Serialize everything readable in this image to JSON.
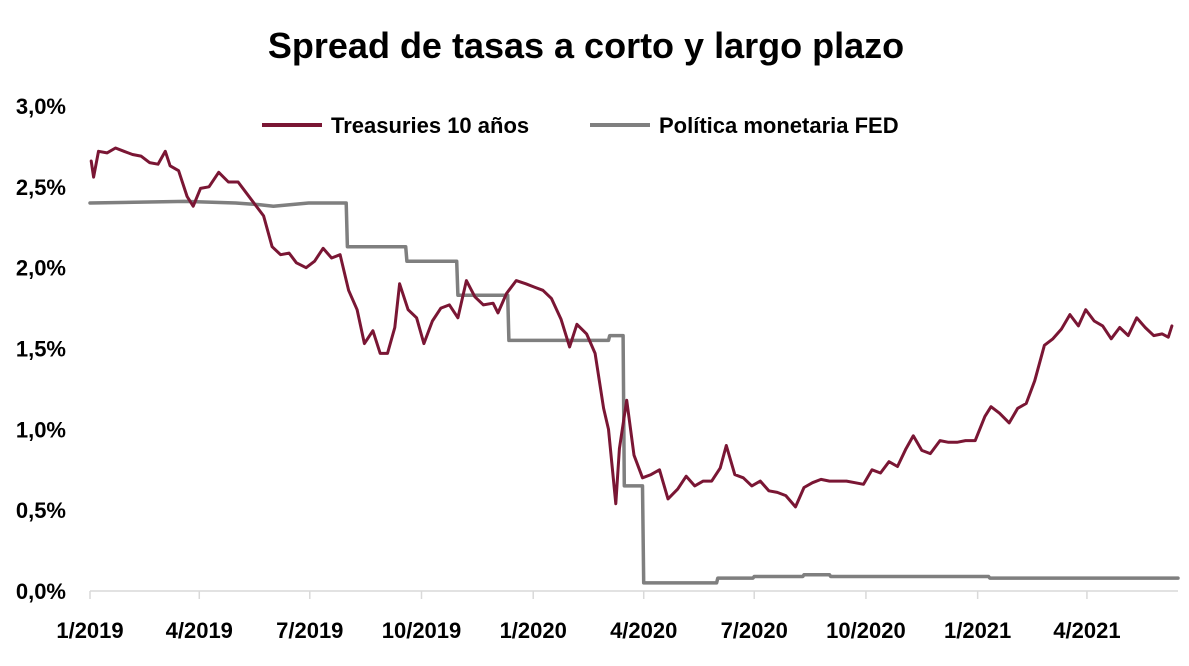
{
  "chart_data": {
    "type": "line",
    "title": "Spread de tasas a corto y largo plazo",
    "xlabel": "",
    "ylabel": "",
    "ylim": [
      0,
      3.0
    ],
    "y_ticks": [
      0,
      0.5,
      1.0,
      1.5,
      2.0,
      2.5,
      3.0
    ],
    "y_tick_labels": [
      "0,0%",
      "0,5%",
      "1,0%",
      "1,5%",
      "2,0%",
      "2,5%",
      "3,0%"
    ],
    "x_tick_labels": [
      "1/2019",
      "4/2019",
      "7/2019",
      "10/2019",
      "1/2020",
      "4/2020",
      "7/2020",
      "10/2020",
      "1/2021",
      "4/2021"
    ],
    "x_ticks": [
      "2019-01-01",
      "2019-04-01",
      "2019-07-01",
      "2019-10-01",
      "2020-01-01",
      "2020-04-01",
      "2020-07-01",
      "2020-10-01",
      "2021-01-01",
      "2021-04-01"
    ],
    "xlim": [
      "2019-01-01",
      "2021-06-15"
    ],
    "grid": false,
    "legend_position": "top",
    "series": [
      {
        "name": "Treasuries 10 años",
        "color": "#7a1634",
        "points": [
          [
            "2019-01-02",
            2.66
          ],
          [
            "2019-01-04",
            2.56
          ],
          [
            "2019-01-08",
            2.72
          ],
          [
            "2019-01-15",
            2.71
          ],
          [
            "2019-01-22",
            2.74
          ],
          [
            "2019-01-29",
            2.72
          ],
          [
            "2019-02-05",
            2.7
          ],
          [
            "2019-02-12",
            2.69
          ],
          [
            "2019-02-19",
            2.65
          ],
          [
            "2019-02-26",
            2.64
          ],
          [
            "2019-03-04",
            2.72
          ],
          [
            "2019-03-08",
            2.63
          ],
          [
            "2019-03-15",
            2.6
          ],
          [
            "2019-03-22",
            2.44
          ],
          [
            "2019-03-27",
            2.38
          ],
          [
            "2019-04-02",
            2.49
          ],
          [
            "2019-04-09",
            2.5
          ],
          [
            "2019-04-17",
            2.59
          ],
          [
            "2019-04-25",
            2.53
          ],
          [
            "2019-05-03",
            2.53
          ],
          [
            "2019-05-10",
            2.46
          ],
          [
            "2019-05-17",
            2.39
          ],
          [
            "2019-05-24",
            2.32
          ],
          [
            "2019-05-31",
            2.13
          ],
          [
            "2019-06-07",
            2.08
          ],
          [
            "2019-06-14",
            2.09
          ],
          [
            "2019-06-20",
            2.03
          ],
          [
            "2019-06-28",
            2.0
          ],
          [
            "2019-07-05",
            2.04
          ],
          [
            "2019-07-12",
            2.12
          ],
          [
            "2019-07-19",
            2.06
          ],
          [
            "2019-07-26",
            2.08
          ],
          [
            "2019-08-02",
            1.86
          ],
          [
            "2019-08-09",
            1.74
          ],
          [
            "2019-08-15",
            1.53
          ],
          [
            "2019-08-22",
            1.61
          ],
          [
            "2019-08-28",
            1.47
          ],
          [
            "2019-09-03",
            1.47
          ],
          [
            "2019-09-09",
            1.63
          ],
          [
            "2019-09-13",
            1.9
          ],
          [
            "2019-09-20",
            1.74
          ],
          [
            "2019-09-27",
            1.69
          ],
          [
            "2019-10-03",
            1.53
          ],
          [
            "2019-10-10",
            1.67
          ],
          [
            "2019-10-17",
            1.75
          ],
          [
            "2019-10-24",
            1.77
          ],
          [
            "2019-10-31",
            1.69
          ],
          [
            "2019-11-07",
            1.92
          ],
          [
            "2019-11-14",
            1.82
          ],
          [
            "2019-11-21",
            1.77
          ],
          [
            "2019-11-29",
            1.78
          ],
          [
            "2019-12-03",
            1.72
          ],
          [
            "2019-12-10",
            1.84
          ],
          [
            "2019-12-18",
            1.92
          ],
          [
            "2019-12-26",
            1.9
          ],
          [
            "2020-01-02",
            1.88
          ],
          [
            "2020-01-09",
            1.86
          ],
          [
            "2020-01-16",
            1.81
          ],
          [
            "2020-01-24",
            1.68
          ],
          [
            "2020-01-31",
            1.51
          ],
          [
            "2020-02-06",
            1.65
          ],
          [
            "2020-02-14",
            1.59
          ],
          [
            "2020-02-21",
            1.47
          ],
          [
            "2020-02-28",
            1.13
          ],
          [
            "2020-03-03",
            1.0
          ],
          [
            "2020-03-09",
            0.54
          ],
          [
            "2020-03-12",
            0.88
          ],
          [
            "2020-03-18",
            1.18
          ],
          [
            "2020-03-24",
            0.84
          ],
          [
            "2020-03-31",
            0.7
          ],
          [
            "2020-04-07",
            0.72
          ],
          [
            "2020-04-14",
            0.75
          ],
          [
            "2020-04-21",
            0.57
          ],
          [
            "2020-04-29",
            0.63
          ],
          [
            "2020-05-06",
            0.71
          ],
          [
            "2020-05-13",
            0.65
          ],
          [
            "2020-05-20",
            0.68
          ],
          [
            "2020-05-27",
            0.68
          ],
          [
            "2020-06-03",
            0.76
          ],
          [
            "2020-06-08",
            0.9
          ],
          [
            "2020-06-15",
            0.72
          ],
          [
            "2020-06-22",
            0.7
          ],
          [
            "2020-06-29",
            0.65
          ],
          [
            "2020-07-06",
            0.68
          ],
          [
            "2020-07-13",
            0.62
          ],
          [
            "2020-07-20",
            0.61
          ],
          [
            "2020-07-27",
            0.59
          ],
          [
            "2020-08-04",
            0.52
          ],
          [
            "2020-08-11",
            0.64
          ],
          [
            "2020-08-18",
            0.67
          ],
          [
            "2020-08-25",
            0.69
          ],
          [
            "2020-09-01",
            0.68
          ],
          [
            "2020-09-08",
            0.68
          ],
          [
            "2020-09-15",
            0.68
          ],
          [
            "2020-09-22",
            0.67
          ],
          [
            "2020-09-29",
            0.66
          ],
          [
            "2020-10-06",
            0.75
          ],
          [
            "2020-10-13",
            0.73
          ],
          [
            "2020-10-20",
            0.8
          ],
          [
            "2020-10-27",
            0.77
          ],
          [
            "2020-11-03",
            0.88
          ],
          [
            "2020-11-09",
            0.96
          ],
          [
            "2020-11-16",
            0.87
          ],
          [
            "2020-11-23",
            0.85
          ],
          [
            "2020-12-01",
            0.93
          ],
          [
            "2020-12-08",
            0.92
          ],
          [
            "2020-12-15",
            0.92
          ],
          [
            "2020-12-22",
            0.93
          ],
          [
            "2020-12-30",
            0.93
          ],
          [
            "2021-01-07",
            1.08
          ],
          [
            "2021-01-12",
            1.14
          ],
          [
            "2021-01-19",
            1.1
          ],
          [
            "2021-01-27",
            1.04
          ],
          [
            "2021-02-03",
            1.13
          ],
          [
            "2021-02-10",
            1.16
          ],
          [
            "2021-02-17",
            1.3
          ],
          [
            "2021-02-25",
            1.52
          ],
          [
            "2021-03-04",
            1.56
          ],
          [
            "2021-03-11",
            1.62
          ],
          [
            "2021-03-18",
            1.71
          ],
          [
            "2021-03-25",
            1.64
          ],
          [
            "2021-03-31",
            1.74
          ],
          [
            "2021-04-07",
            1.67
          ],
          [
            "2021-04-14",
            1.64
          ],
          [
            "2021-04-21",
            1.56
          ],
          [
            "2021-04-28",
            1.63
          ],
          [
            "2021-05-05",
            1.58
          ],
          [
            "2021-05-12",
            1.69
          ],
          [
            "2021-05-19",
            1.63
          ],
          [
            "2021-05-26",
            1.58
          ],
          [
            "2021-06-02",
            1.59
          ],
          [
            "2021-06-07",
            1.57
          ],
          [
            "2021-06-10",
            1.64
          ]
        ]
      },
      {
        "name": "Política monetaria FED",
        "color": "#7f7f7f",
        "points": [
          [
            "2019-01-01",
            2.4
          ],
          [
            "2019-03-20",
            2.41
          ],
          [
            "2019-05-01",
            2.4
          ],
          [
            "2019-05-20",
            2.39
          ],
          [
            "2019-06-01",
            2.38
          ],
          [
            "2019-06-30",
            2.4
          ],
          [
            "2019-07-31",
            2.4
          ],
          [
            "2019-08-01",
            2.13
          ],
          [
            "2019-09-18",
            2.13
          ],
          [
            "2019-09-19",
            2.04
          ],
          [
            "2019-10-30",
            2.04
          ],
          [
            "2019-10-31",
            1.83
          ],
          [
            "2019-12-11",
            1.83
          ],
          [
            "2019-12-12",
            1.55
          ],
          [
            "2020-03-03",
            1.55
          ],
          [
            "2020-03-04",
            1.58
          ],
          [
            "2020-03-15",
            1.58
          ],
          [
            "2020-03-16",
            0.65
          ],
          [
            "2020-03-31",
            0.65
          ],
          [
            "2020-04-01",
            0.05
          ],
          [
            "2020-05-31",
            0.05
          ],
          [
            "2020-06-01",
            0.08
          ],
          [
            "2020-06-30",
            0.08
          ],
          [
            "2020-07-01",
            0.09
          ],
          [
            "2020-08-10",
            0.09
          ],
          [
            "2020-08-11",
            0.1
          ],
          [
            "2020-09-01",
            0.1
          ],
          [
            "2020-09-02",
            0.09
          ],
          [
            "2021-01-10",
            0.09
          ],
          [
            "2021-01-11",
            0.08
          ],
          [
            "2021-06-15",
            0.08
          ]
        ]
      }
    ]
  }
}
